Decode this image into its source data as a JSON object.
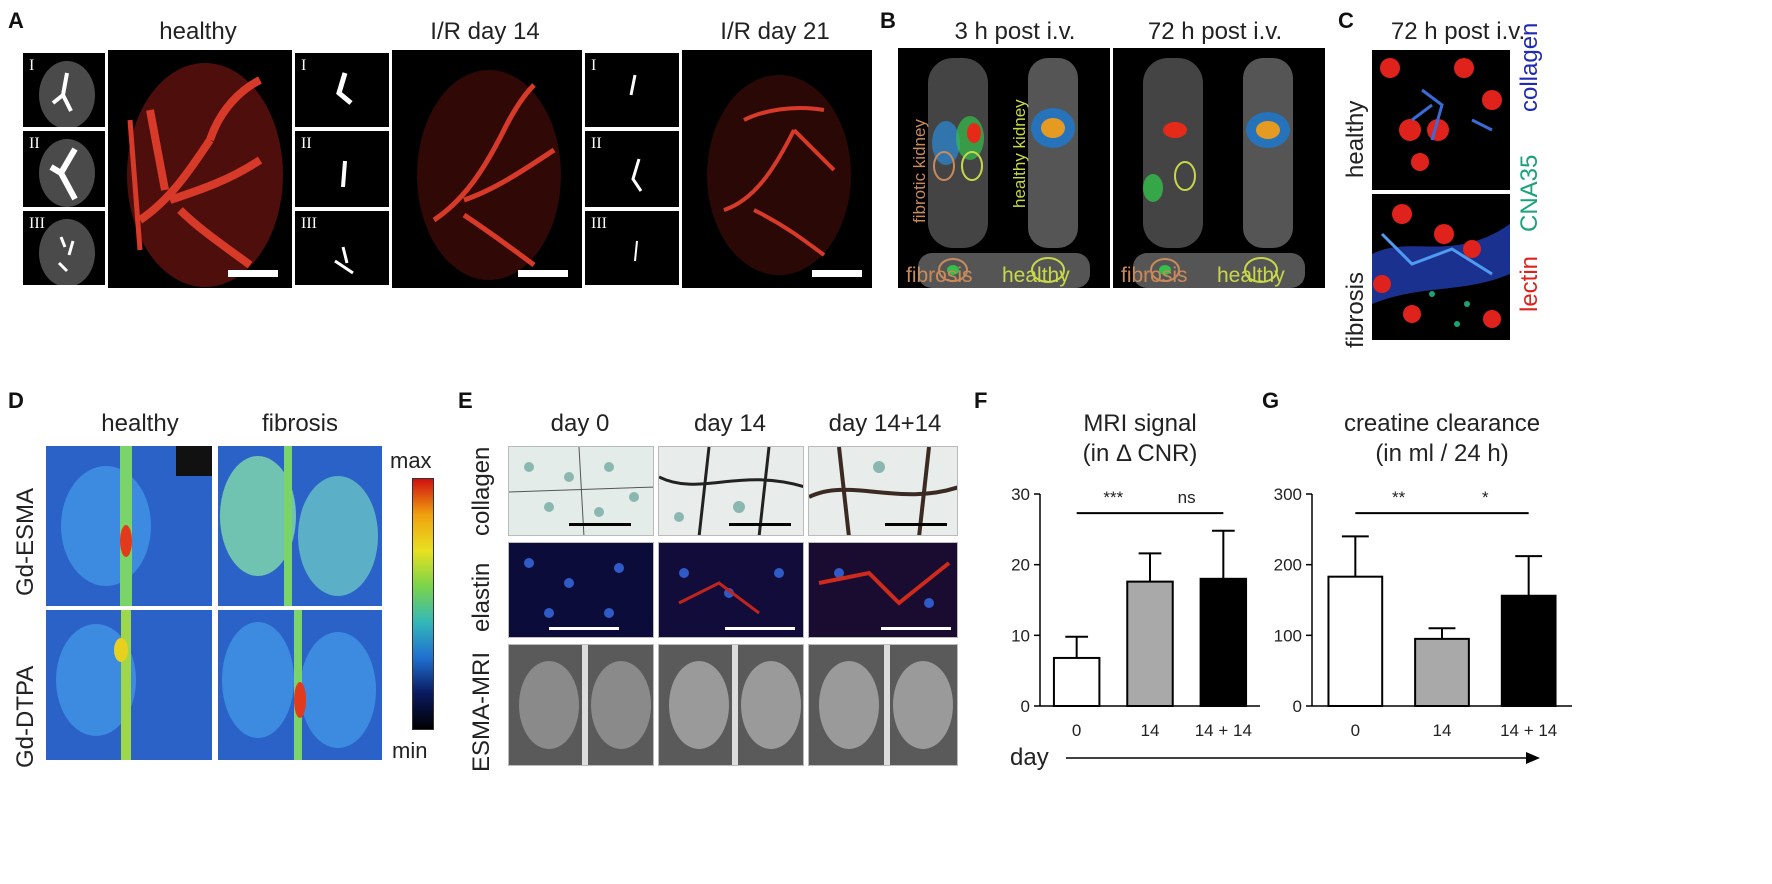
{
  "panels": {
    "A": {
      "letter": "A",
      "titles": [
        "healthy",
        "I/R day 14",
        "I/R day 21"
      ],
      "roman": [
        "I",
        "II",
        "III"
      ]
    },
    "B": {
      "letter": "B",
      "titles": [
        "3 h post i.v.",
        "72 h post i.v."
      ],
      "kidney_labels": [
        "fibrotic kidney",
        "healthy kidney"
      ],
      "bottom_labels": [
        "fibrosis",
        "healthy"
      ]
    },
    "C": {
      "letter": "C",
      "title": "72 h post i.v.",
      "row_labels": [
        "healthy",
        "fibrosis"
      ],
      "stain_labels": [
        "collagen",
        "CNA35",
        "lectin"
      ]
    },
    "D": {
      "letter": "D",
      "col_labels": [
        "healthy",
        "fibrosis"
      ],
      "row_labels": [
        "Gd-ESMA",
        "Gd-DTPA"
      ],
      "scale_max": "max",
      "scale_min": "min"
    },
    "E": {
      "letter": "E",
      "col_labels": [
        "day 0",
        "day 14",
        "day 14+14"
      ],
      "row_labels": [
        "collagen",
        "elastin",
        "ESMA-MRI"
      ]
    },
    "F": {
      "letter": "F"
    },
    "G": {
      "letter": "G"
    },
    "axis_day_label": "day"
  },
  "colors": {
    "healthy_outline": "#c8d84a",
    "fibrosis_outline": "#c98a5a",
    "bar_gray": "#a9a9a9",
    "bar_black": "#000000",
    "collagen": "#1f2bb5",
    "cna35": "#1aa37a",
    "lectin": "#e0221c"
  },
  "chart_data": [
    {
      "type": "bar",
      "title": "MRI signal",
      "subtitle": "(in Δ CNR)",
      "categories": [
        "0",
        "14",
        "14 + 14"
      ],
      "values": [
        6.8,
        17.6,
        18.0
      ],
      "errors": [
        3.0,
        4.0,
        6.8
      ],
      "ylim": [
        0,
        30
      ],
      "yticks": [
        0,
        10,
        20,
        30
      ],
      "significance": [
        {
          "from": 0,
          "to": 1,
          "label": "***"
        },
        {
          "from": 1,
          "to": 2,
          "label": "ns"
        }
      ],
      "bar_colors": [
        "#ffffff",
        "#a9a9a9",
        "#000000"
      ]
    },
    {
      "type": "bar",
      "title": "creatine clearance",
      "subtitle": "(in ml / 24 h)",
      "categories": [
        "0",
        "14",
        "14 + 14"
      ],
      "values": [
        183,
        95,
        156
      ],
      "errors": [
        57,
        15,
        56
      ],
      "ylim": [
        0,
        300
      ],
      "yticks": [
        0,
        100,
        200,
        300
      ],
      "significance": [
        {
          "from": 0,
          "to": 1,
          "label": "**"
        },
        {
          "from": 1,
          "to": 2,
          "label": "*"
        }
      ],
      "bar_colors": [
        "#ffffff",
        "#a9a9a9",
        "#000000"
      ]
    }
  ]
}
